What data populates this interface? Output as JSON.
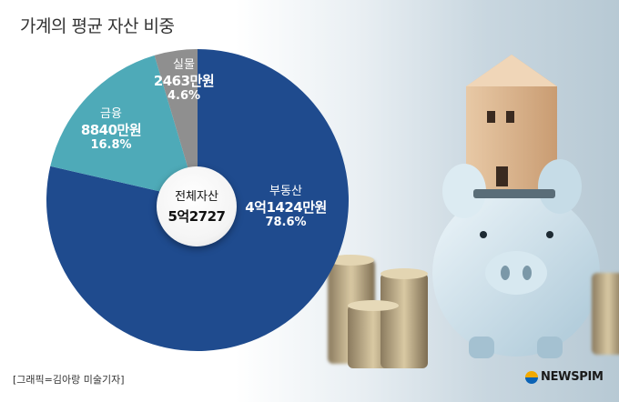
{
  "title": "가계의 평균 자산 비중",
  "center": {
    "label": "전체자산",
    "value": "5억2727"
  },
  "credit": "[그래픽=김아랑 미술기자]",
  "logo": "NEWSPIM",
  "colors": {
    "real_estate": "#1f4b8e",
    "financial": "#4eaab8",
    "physical": "#8f8f8f"
  },
  "chart_data": {
    "type": "pie",
    "title": "가계의 평균 자산 비중",
    "total_label": "전체자산",
    "total": "5억2727",
    "slices": [
      {
        "name": "부동산",
        "amount": "4억1424만원",
        "percent_label": "78.6%",
        "value": 78.6,
        "color": "#1f4b8e"
      },
      {
        "name": "금융",
        "amount": "8840만원",
        "percent_label": "16.8%",
        "value": 16.8,
        "color": "#4eaab8"
      },
      {
        "name": "실물",
        "amount": "2463만원",
        "percent_label": "4.6%",
        "value": 4.6,
        "color": "#8f8f8f"
      }
    ]
  }
}
